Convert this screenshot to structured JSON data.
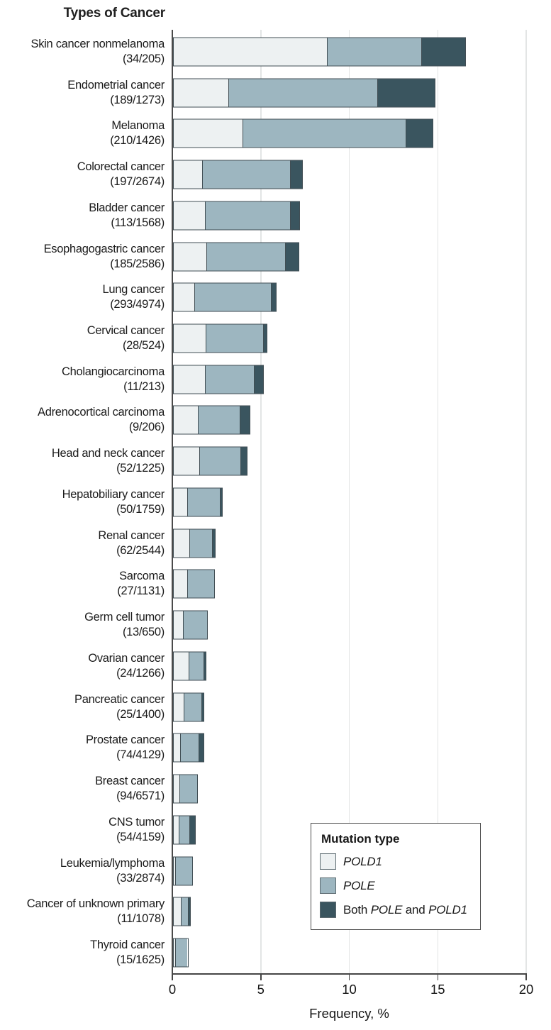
{
  "figure_title": "Types of Cancer",
  "axis": {
    "label": "Frequency, %",
    "ticks": [
      0,
      5,
      10,
      15,
      20
    ],
    "max": 20
  },
  "legend": {
    "title": "Mutation type",
    "entries": [
      {
        "name": "POLD1",
        "color": "#edf1f2",
        "runs": [
          {
            "t": "POLD1",
            "i": true
          }
        ]
      },
      {
        "name": "POLE",
        "color": "#9db6c0",
        "runs": [
          {
            "t": "POLE",
            "i": true
          }
        ]
      },
      {
        "name": "Both POLE and POLD1",
        "color": "#3a555f",
        "runs": [
          {
            "t": "Both ",
            "i": false
          },
          {
            "t": "POLE",
            "i": true
          },
          {
            "t": " and ",
            "i": false
          },
          {
            "t": "POLD1",
            "i": true
          }
        ]
      }
    ]
  },
  "colors": {
    "pold1": "#edf1f2",
    "pole": "#9db6c0",
    "both": "#3a555f",
    "bar_border": "#414e54",
    "grid": "#e3e5e5",
    "axis": "#454545"
  },
  "chart_data": {
    "type": "bar",
    "stacked": true,
    "orientation": "horizontal",
    "title": "Types of Cancer",
    "xlabel": "Frequency, %",
    "xlim": [
      0,
      20
    ],
    "grid": "vertical at 5,10,15,20",
    "legend_position": "bottom-right inside plot",
    "series_names": [
      "POLD1",
      "POLE",
      "Both POLE and POLD1"
    ],
    "rows": [
      {
        "label": "Skin cancer nonmelanoma",
        "count": "(34/205)",
        "pold1": 8.78,
        "pole": 5.32,
        "both": 2.49,
        "total": 16.59
      },
      {
        "label": "Endometrial cancer",
        "count": "(189/1273)",
        "pold1": 3.14,
        "pole": 8.47,
        "both": 3.24,
        "total": 14.85
      },
      {
        "label": "Melanoma",
        "count": "(210/1426)",
        "pold1": 3.97,
        "pole": 9.28,
        "both": 1.48,
        "total": 14.73
      },
      {
        "label": "Colorectal cancer",
        "count": "(197/2674)",
        "pold1": 1.67,
        "pole": 5.01,
        "both": 0.69,
        "total": 7.37
      },
      {
        "label": "Bladder cancer",
        "count": "(113/1568)",
        "pold1": 1.83,
        "pole": 4.88,
        "both": 0.5,
        "total": 7.21
      },
      {
        "label": "Esophagogastric cancer",
        "count": "(185/2586)",
        "pold1": 1.9,
        "pole": 4.5,
        "both": 0.75,
        "total": 7.15
      },
      {
        "label": "Lung cancer",
        "count": "(293/4974)",
        "pold1": 1.2,
        "pole": 4.41,
        "both": 0.28,
        "total": 5.89
      },
      {
        "label": "Cervical cancer",
        "count": "(28/524)",
        "pold1": 1.87,
        "pole": 3.3,
        "both": 0.17,
        "total": 5.34
      },
      {
        "label": "Cholangiocarcinoma",
        "count": "(11/213)",
        "pold1": 1.86,
        "pole": 2.8,
        "both": 0.5,
        "total": 5.16
      },
      {
        "label": "Adrenocortical carcinoma",
        "count": "(9/206)",
        "pold1": 1.43,
        "pole": 2.43,
        "both": 0.51,
        "total": 4.37
      },
      {
        "label": "Head and neck cancer",
        "count": "(52/1225)",
        "pold1": 1.53,
        "pole": 2.37,
        "both": 0.34,
        "total": 4.24
      },
      {
        "label": "Hepatobiliary cancer",
        "count": "(50/1759)",
        "pold1": 0.83,
        "pole": 1.91,
        "both": 0.1,
        "total": 2.84
      },
      {
        "label": "Renal cancer",
        "count": "(62/2544)",
        "pold1": 0.96,
        "pole": 1.35,
        "both": 0.13,
        "total": 2.44
      },
      {
        "label": "Sarcoma",
        "count": "(27/1131)",
        "pold1": 0.83,
        "pole": 1.56,
        "both": 0,
        "total": 2.39
      },
      {
        "label": "Germ cell tumor",
        "count": "(13/650)",
        "pold1": 0.56,
        "pole": 1.44,
        "both": 0,
        "total": 2.0
      },
      {
        "label": "Ovarian cancer",
        "count": "(24/1266)",
        "pold1": 0.92,
        "pole": 0.88,
        "both": 0.1,
        "total": 1.9
      },
      {
        "label": "Pancreatic cancer",
        "count": "(25/1400)",
        "pold1": 0.63,
        "pole": 1.08,
        "both": 0.08,
        "total": 1.79
      },
      {
        "label": "Prostate cancer",
        "count": "(74/4129)",
        "pold1": 0.42,
        "pole": 1.08,
        "both": 0.29,
        "total": 1.79
      },
      {
        "label": "Breast cancer",
        "count": "(94/6571)",
        "pold1": 0.36,
        "pole": 1.07,
        "both": 0,
        "total": 1.43
      },
      {
        "label": "CNS tumor",
        "count": "(54/4159)",
        "pold1": 0.36,
        "pole": 0.6,
        "both": 0.34,
        "total": 1.3
      },
      {
        "label": "Leukemia/lymphoma",
        "count": "(33/2874)",
        "pold1": 0.13,
        "pole": 1.02,
        "both": 0,
        "total": 1.15
      },
      {
        "label": "Cancer of unknown primary",
        "count": "(11/1078)",
        "pold1": 0.49,
        "pole": 0.46,
        "both": 0.07,
        "total": 1.02
      },
      {
        "label": "Thyroid cancer",
        "count": "(15/1625)",
        "pold1": 0.13,
        "pole": 0.79,
        "both": 0,
        "total": 0.92
      }
    ]
  }
}
